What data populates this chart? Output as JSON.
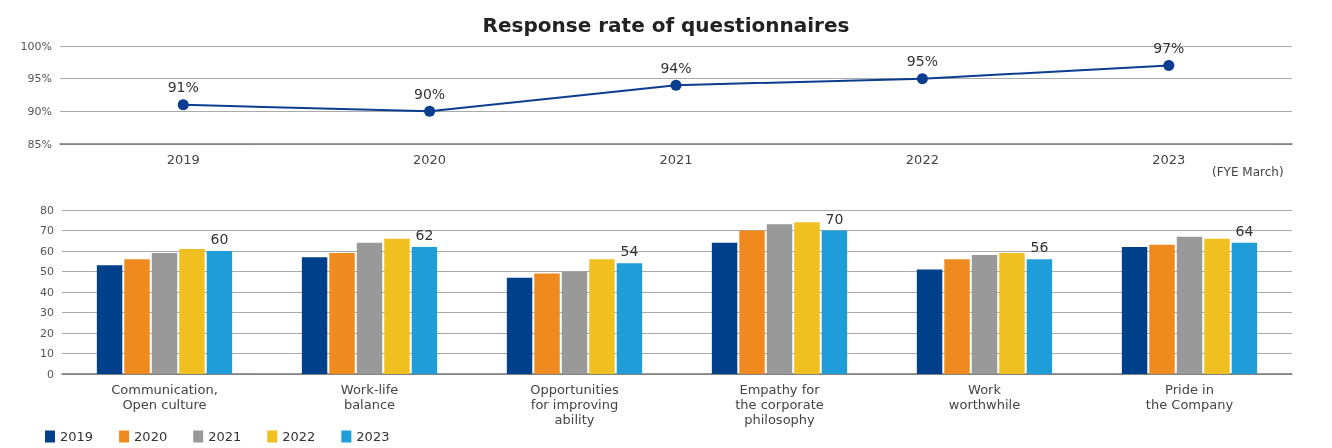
{
  "chart_data": [
    {
      "type": "line",
      "title": "Response rate of questionnaires",
      "xlabel": "(FYE March)",
      "categories": [
        "2019",
        "2020",
        "2021",
        "2022",
        "2023"
      ],
      "values": [
        91,
        90,
        94,
        95,
        97
      ],
      "value_labels": [
        "91%",
        "90%",
        "94%",
        "95%",
        "97%"
      ],
      "color": "#0a3d8f",
      "marker": "circle",
      "ylim": [
        85,
        100
      ],
      "yticks": [
        {
          "value": 85,
          "label": "85%"
        },
        {
          "value": 90,
          "label": "90%"
        },
        {
          "value": 95,
          "label": "95%"
        },
        {
          "value": 100,
          "label": "100%"
        }
      ],
      "grid": "y"
    },
    {
      "type": "bar",
      "categories": [
        "Communication,\nOpen culture",
        "Work-life\nbalance",
        "Opportunities\nfor improving\nability",
        "Empathy for\nthe corporate\nphilosophy",
        "Work\nworthwhile",
        "Pride in\nthe Company"
      ],
      "series": [
        {
          "name": "2019",
          "color": "#003f8a",
          "values": [
            53,
            57,
            47,
            64,
            51,
            62
          ]
        },
        {
          "name": "2020",
          "color": "#ef8a1e",
          "values": [
            56,
            59,
            49,
            70,
            56,
            63
          ]
        },
        {
          "name": "2021",
          "color": "#999999",
          "values": [
            59,
            64,
            50,
            73,
            58,
            67
          ]
        },
        {
          "name": "2022",
          "color": "#f0c020",
          "values": [
            61,
            66,
            56,
            74,
            59,
            66
          ]
        },
        {
          "name": "2023",
          "color": "#1e9dd8",
          "values": [
            60,
            62,
            54,
            70,
            56,
            64
          ],
          "value_labels": [
            "60",
            "62",
            "54",
            "70",
            "56",
            "64"
          ]
        }
      ],
      "ylim": [
        0,
        80
      ],
      "yticks": [
        0,
        10,
        20,
        30,
        40,
        50,
        60,
        70,
        80
      ],
      "grid": "y",
      "legend": "bottom left"
    }
  ]
}
